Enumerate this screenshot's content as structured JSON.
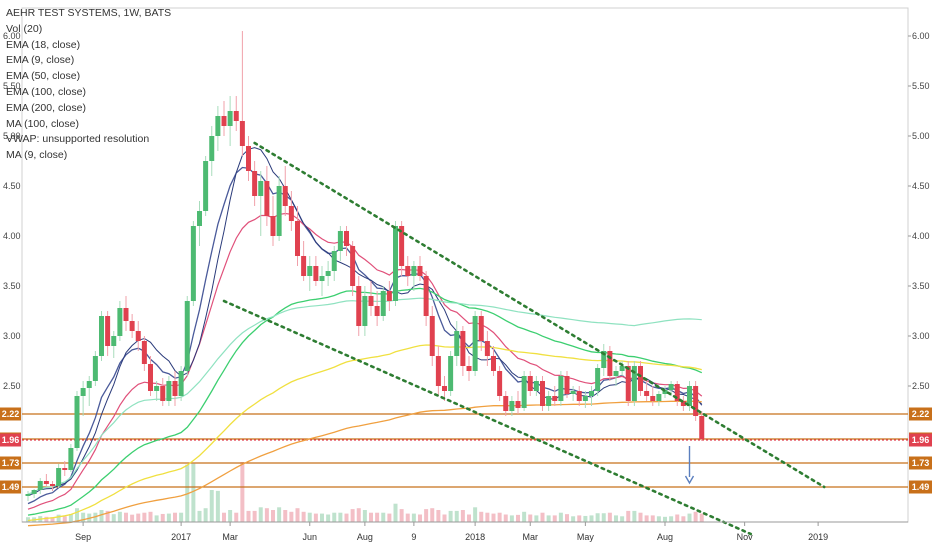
{
  "chart_data": {
    "type": "candlestick",
    "title": "AEHR TEST SYSTEMS, 1W, BATS",
    "indicators": [
      "Vol (20)",
      "EMA (18, close)",
      "EMA (9, close)",
      "EMA (50, close)",
      "EMA (100, close)",
      "EMA (200, close)",
      "MA (100, close)",
      "VWAP: unsupported resolution",
      "MA (9, close)"
    ],
    "y_ticks": [
      "6.00",
      "5.50",
      "5.00",
      "4.50",
      "4.00",
      "3.50",
      "3.00",
      "2.50"
    ],
    "y_tick_values": [
      6.0,
      5.5,
      5.0,
      4.5,
      4.0,
      3.5,
      3.0,
      2.5
    ],
    "ylim": [
      1.1,
      6.3
    ],
    "x_ticks": [
      "Sep",
      "2017",
      "Mar",
      "Jun",
      "Aug",
      "9",
      "2018",
      "Mar",
      "May",
      "Aug",
      "Nov",
      "2019"
    ],
    "x_tick_weeks": [
      9,
      25,
      33,
      46,
      55,
      63,
      73,
      82,
      91,
      104,
      117,
      129
    ],
    "price_levels": [
      {
        "value": 2.22,
        "label": "2.22",
        "color": "#c8701a"
      },
      {
        "value": 1.97,
        "label": "1.97",
        "color": "#c8701a"
      },
      {
        "value": 1.96,
        "label": "1.96",
        "color": "#e0414f"
      },
      {
        "value": 1.73,
        "label": "1.73",
        "color": "#c8701a"
      },
      {
        "value": 1.49,
        "label": "1.49",
        "color": "#c8701a"
      }
    ],
    "channel_lines": [
      {
        "from": [
          37,
          4.93
        ],
        "to": [
          130,
          1.49
        ],
        "color": "#2e7d32"
      },
      {
        "from": [
          32,
          3.35
        ],
        "to": [
          118,
          1.02
        ],
        "color": "#2e7d32"
      }
    ],
    "arrow": {
      "week": 108,
      "from": 1.9,
      "to": 1.53,
      "color": "#5b7fbf"
    },
    "candles": [
      [
        1.4,
        1.45,
        1.35,
        1.42
      ],
      [
        1.42,
        1.47,
        1.38,
        1.46
      ],
      [
        1.46,
        1.58,
        1.42,
        1.55
      ],
      [
        1.55,
        1.62,
        1.5,
        1.52
      ],
      [
        1.52,
        1.55,
        1.45,
        1.5
      ],
      [
        1.5,
        1.72,
        1.48,
        1.68
      ],
      [
        1.68,
        1.75,
        1.6,
        1.66
      ],
      [
        1.66,
        1.92,
        1.64,
        1.88
      ],
      [
        1.88,
        2.45,
        1.85,
        2.4
      ],
      [
        2.4,
        2.55,
        2.2,
        2.48
      ],
      [
        2.48,
        2.6,
        2.3,
        2.55
      ],
      [
        2.55,
        2.85,
        2.5,
        2.8
      ],
      [
        2.8,
        3.25,
        2.75,
        3.2
      ],
      [
        3.2,
        3.25,
        2.8,
        2.9
      ],
      [
        2.9,
        3.05,
        2.78,
        3.0
      ],
      [
        3.0,
        3.35,
        2.95,
        3.28
      ],
      [
        3.28,
        3.4,
        3.05,
        3.15
      ],
      [
        3.15,
        3.22,
        2.98,
        3.05
      ],
      [
        3.05,
        3.15,
        2.85,
        2.95
      ],
      [
        2.95,
        3.0,
        2.65,
        2.72
      ],
      [
        2.72,
        2.8,
        2.4,
        2.45
      ],
      [
        2.45,
        2.55,
        2.35,
        2.5
      ],
      [
        2.5,
        2.58,
        2.3,
        2.35
      ],
      [
        2.35,
        2.6,
        2.3,
        2.55
      ],
      [
        2.55,
        2.65,
        2.3,
        2.4
      ],
      [
        2.4,
        2.7,
        2.35,
        2.65
      ],
      [
        2.65,
        3.4,
        2.6,
        3.35
      ],
      [
        3.35,
        4.15,
        3.3,
        4.1
      ],
      [
        4.1,
        4.35,
        3.9,
        4.25
      ],
      [
        4.25,
        4.8,
        4.2,
        4.75
      ],
      [
        4.75,
        5.1,
        4.6,
        5.0
      ],
      [
        5.0,
        5.3,
        4.85,
        5.2
      ],
      [
        5.2,
        5.35,
        5.0,
        5.1
      ],
      [
        5.1,
        5.4,
        4.9,
        5.25
      ],
      [
        5.25,
        5.4,
        5.05,
        5.15
      ],
      [
        5.15,
        6.05,
        4.8,
        4.9
      ],
      [
        4.9,
        5.0,
        4.55,
        4.65
      ],
      [
        4.65,
        4.75,
        4.3,
        4.4
      ],
      [
        4.4,
        4.65,
        4.0,
        4.55
      ],
      [
        4.55,
        4.7,
        4.1,
        4.2
      ],
      [
        4.2,
        4.4,
        3.9,
        4.0
      ],
      [
        4.0,
        4.6,
        3.95,
        4.5
      ],
      [
        4.5,
        4.7,
        4.2,
        4.3
      ],
      [
        4.3,
        4.45,
        4.05,
        4.15
      ],
      [
        4.15,
        4.3,
        3.7,
        3.8
      ],
      [
        3.8,
        3.95,
        3.55,
        3.6
      ],
      [
        3.6,
        3.8,
        3.45,
        3.7
      ],
      [
        3.7,
        3.8,
        3.5,
        3.55
      ],
      [
        3.55,
        3.7,
        3.4,
        3.6
      ],
      [
        3.6,
        3.75,
        3.5,
        3.65
      ],
      [
        3.65,
        3.9,
        3.55,
        3.85
      ],
      [
        3.85,
        4.1,
        3.75,
        4.05
      ],
      [
        4.05,
        4.1,
        3.8,
        3.9
      ],
      [
        3.9,
        3.95,
        3.4,
        3.5
      ],
      [
        3.5,
        3.6,
        3.0,
        3.1
      ],
      [
        3.1,
        3.5,
        3.0,
        3.4
      ],
      [
        3.4,
        3.55,
        3.2,
        3.3
      ],
      [
        3.3,
        3.45,
        3.1,
        3.2
      ],
      [
        3.2,
        3.5,
        3.15,
        3.45
      ],
      [
        3.45,
        3.55,
        3.25,
        3.35
      ],
      [
        3.35,
        4.15,
        3.3,
        4.1
      ],
      [
        4.1,
        4.15,
        3.6,
        3.7
      ],
      [
        3.7,
        3.8,
        3.5,
        3.6
      ],
      [
        3.6,
        3.75,
        3.45,
        3.7
      ],
      [
        3.7,
        3.8,
        3.55,
        3.6
      ],
      [
        3.6,
        3.65,
        3.1,
        3.2
      ],
      [
        3.2,
        3.3,
        2.7,
        2.8
      ],
      [
        2.8,
        2.9,
        2.4,
        2.5
      ],
      [
        2.5,
        2.6,
        2.35,
        2.45
      ],
      [
        2.45,
        2.85,
        2.4,
        2.8
      ],
      [
        2.8,
        3.15,
        2.7,
        3.05
      ],
      [
        3.05,
        3.1,
        2.6,
        2.7
      ],
      [
        2.7,
        2.8,
        2.55,
        2.65
      ],
      [
        2.65,
        3.25,
        2.6,
        3.2
      ],
      [
        3.2,
        3.25,
        2.85,
        2.95
      ],
      [
        2.95,
        3.05,
        2.7,
        2.8
      ],
      [
        2.8,
        2.9,
        2.6,
        2.65
      ],
      [
        2.65,
        2.7,
        2.35,
        2.4
      ],
      [
        2.4,
        2.45,
        2.2,
        2.25
      ],
      [
        2.25,
        2.4,
        2.2,
        2.35
      ],
      [
        2.35,
        2.45,
        2.22,
        2.28
      ],
      [
        2.28,
        2.65,
        2.25,
        2.6
      ],
      [
        2.6,
        2.65,
        2.4,
        2.45
      ],
      [
        2.45,
        2.6,
        2.4,
        2.55
      ],
      [
        2.55,
        2.6,
        2.25,
        2.3
      ],
      [
        2.3,
        2.45,
        2.25,
        2.4
      ],
      [
        2.4,
        2.5,
        2.3,
        2.35
      ],
      [
        2.35,
        2.65,
        2.3,
        2.6
      ],
      [
        2.6,
        2.65,
        2.38,
        2.42
      ],
      [
        2.42,
        2.5,
        2.35,
        2.45
      ],
      [
        2.45,
        2.5,
        2.3,
        2.35
      ],
      [
        2.35,
        2.45,
        2.28,
        2.4
      ],
      [
        2.4,
        2.5,
        2.3,
        2.45
      ],
      [
        2.45,
        2.72,
        2.4,
        2.68
      ],
      [
        2.68,
        2.92,
        2.6,
        2.85
      ],
      [
        2.85,
        2.9,
        2.55,
        2.6
      ],
      [
        2.6,
        2.7,
        2.5,
        2.65
      ],
      [
        2.65,
        2.75,
        2.6,
        2.7
      ],
      [
        2.7,
        2.75,
        2.3,
        2.35
      ],
      [
        2.35,
        2.75,
        2.3,
        2.7
      ],
      [
        2.7,
        2.75,
        2.4,
        2.45
      ],
      [
        2.45,
        2.55,
        2.35,
        2.4
      ],
      [
        2.4,
        2.5,
        2.3,
        2.35
      ],
      [
        2.35,
        2.45,
        2.3,
        2.42
      ],
      [
        2.42,
        2.5,
        2.38,
        2.46
      ],
      [
        2.46,
        2.55,
        2.4,
        2.52
      ],
      [
        2.52,
        2.55,
        2.3,
        2.35
      ],
      [
        2.35,
        2.4,
        2.25,
        2.3
      ],
      [
        2.3,
        2.55,
        2.25,
        2.5
      ],
      [
        2.5,
        2.55,
        2.15,
        2.2
      ],
      [
        2.2,
        2.25,
        1.95,
        1.97
      ]
    ]
  }
}
